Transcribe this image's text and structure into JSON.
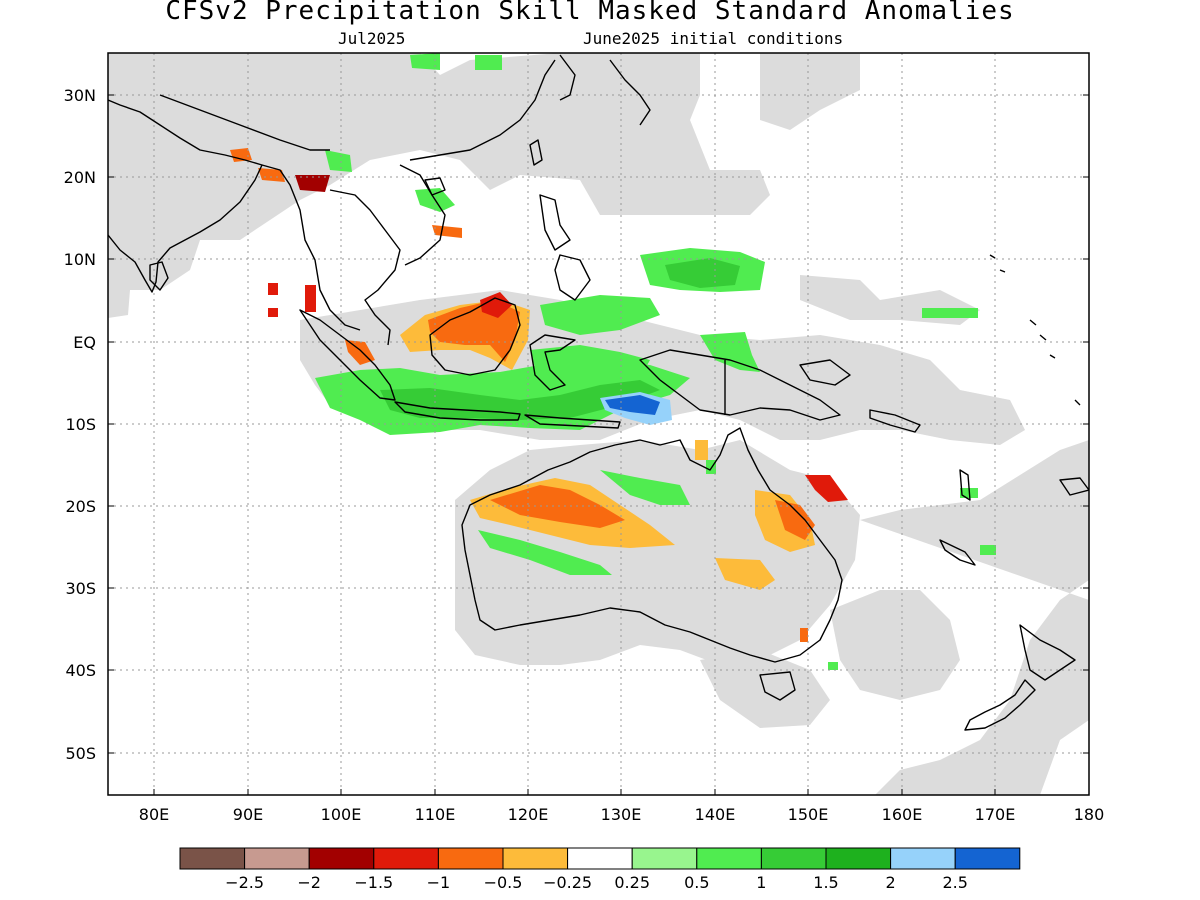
{
  "title": "CFSv2 Precipitation Skill Masked Standard Anomalies",
  "subtitle_left": "Jul2025",
  "subtitle_right": "June2025 initial conditions",
  "lat_ticks": [
    {
      "label": "30N",
      "lat": 30
    },
    {
      "label": "20N",
      "lat": 20
    },
    {
      "label": "10N",
      "lat": 10
    },
    {
      "label": "EQ",
      "lat": 0
    },
    {
      "label": "10S",
      "lat": -10
    },
    {
      "label": "20S",
      "lat": -20
    },
    {
      "label": "30S",
      "lat": -30
    },
    {
      "label": "40S",
      "lat": -40
    },
    {
      "label": "50S",
      "lat": -50
    }
  ],
  "lon_ticks": [
    {
      "label": "80E",
      "lon": 80
    },
    {
      "label": "90E",
      "lon": 90
    },
    {
      "label": "100E",
      "lon": 100
    },
    {
      "label": "110E",
      "lon": 110
    },
    {
      "label": "120E",
      "lon": 120
    },
    {
      "label": "130E",
      "lon": 130
    },
    {
      "label": "140E",
      "lon": 140
    },
    {
      "label": "150E",
      "lon": 150
    },
    {
      "label": "160E",
      "lon": 160
    },
    {
      "label": "170E",
      "lon": 170
    },
    {
      "label": "180",
      "lon": 180
    }
  ],
  "colorbar": {
    "colors": [
      "#7a5348",
      "#c79a90",
      "#a20000",
      "#e01a0a",
      "#f86a10",
      "#fdbb3a",
      "#ffffff",
      "#98f58e",
      "#50ec50",
      "#36cc36",
      "#1eb11e",
      "#96d2fa",
      "#1464d2"
    ],
    "labels": [
      "−2.5",
      "−2",
      "−1.5",
      "−1",
      "−0.5",
      "−0.25",
      "0.25",
      "0.5",
      "1",
      "1.5",
      "2",
      "2.5"
    ]
  },
  "colors": {
    "mask_gray": "#dcdcdc",
    "coast": "#000000"
  }
}
